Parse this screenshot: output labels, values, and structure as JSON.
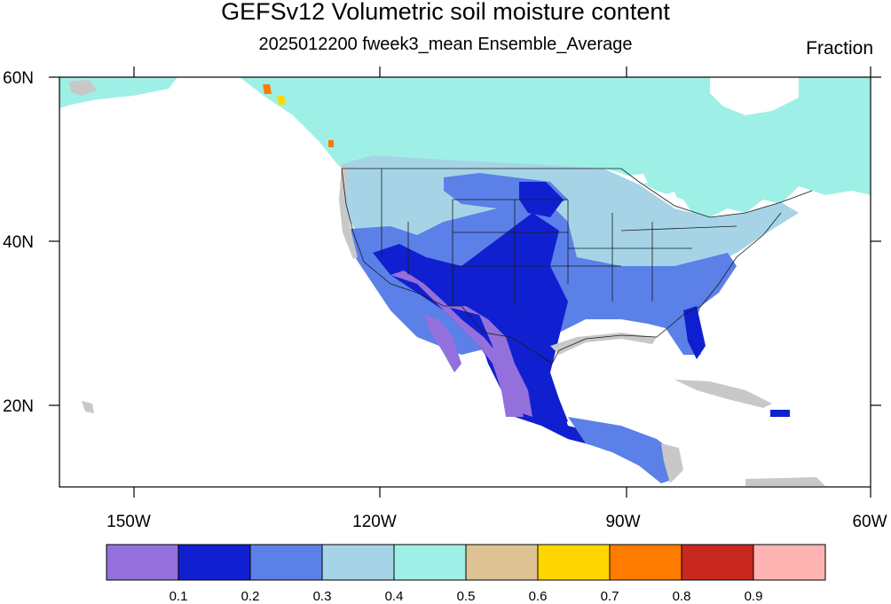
{
  "title": "GEFSv12 Volumetric soil moisture content",
  "subtitle": "2025012200 fweek3_mean Ensemble_Average",
  "units": "Fraction",
  "lat_labels": [
    "60N",
    "40N",
    "20N"
  ],
  "lon_labels": [
    "150W",
    "120W",
    "90W",
    "60W"
  ],
  "colorbar": {
    "colors": [
      "#9370db",
      "#1020d0",
      "#5b80e8",
      "#a6d4e6",
      "#9ef0e6",
      "#dfc294",
      "#ffd700",
      "#ff7b00",
      "#c8281e",
      "#ffb4b4"
    ],
    "labels": [
      "0.1",
      "0.2",
      "0.3",
      "0.4",
      "0.5",
      "0.6",
      "0.7",
      "0.8",
      "0.9"
    ]
  },
  "colors": {
    "land_mask": "#c8c8c8",
    "border": "#1a1a1a"
  }
}
